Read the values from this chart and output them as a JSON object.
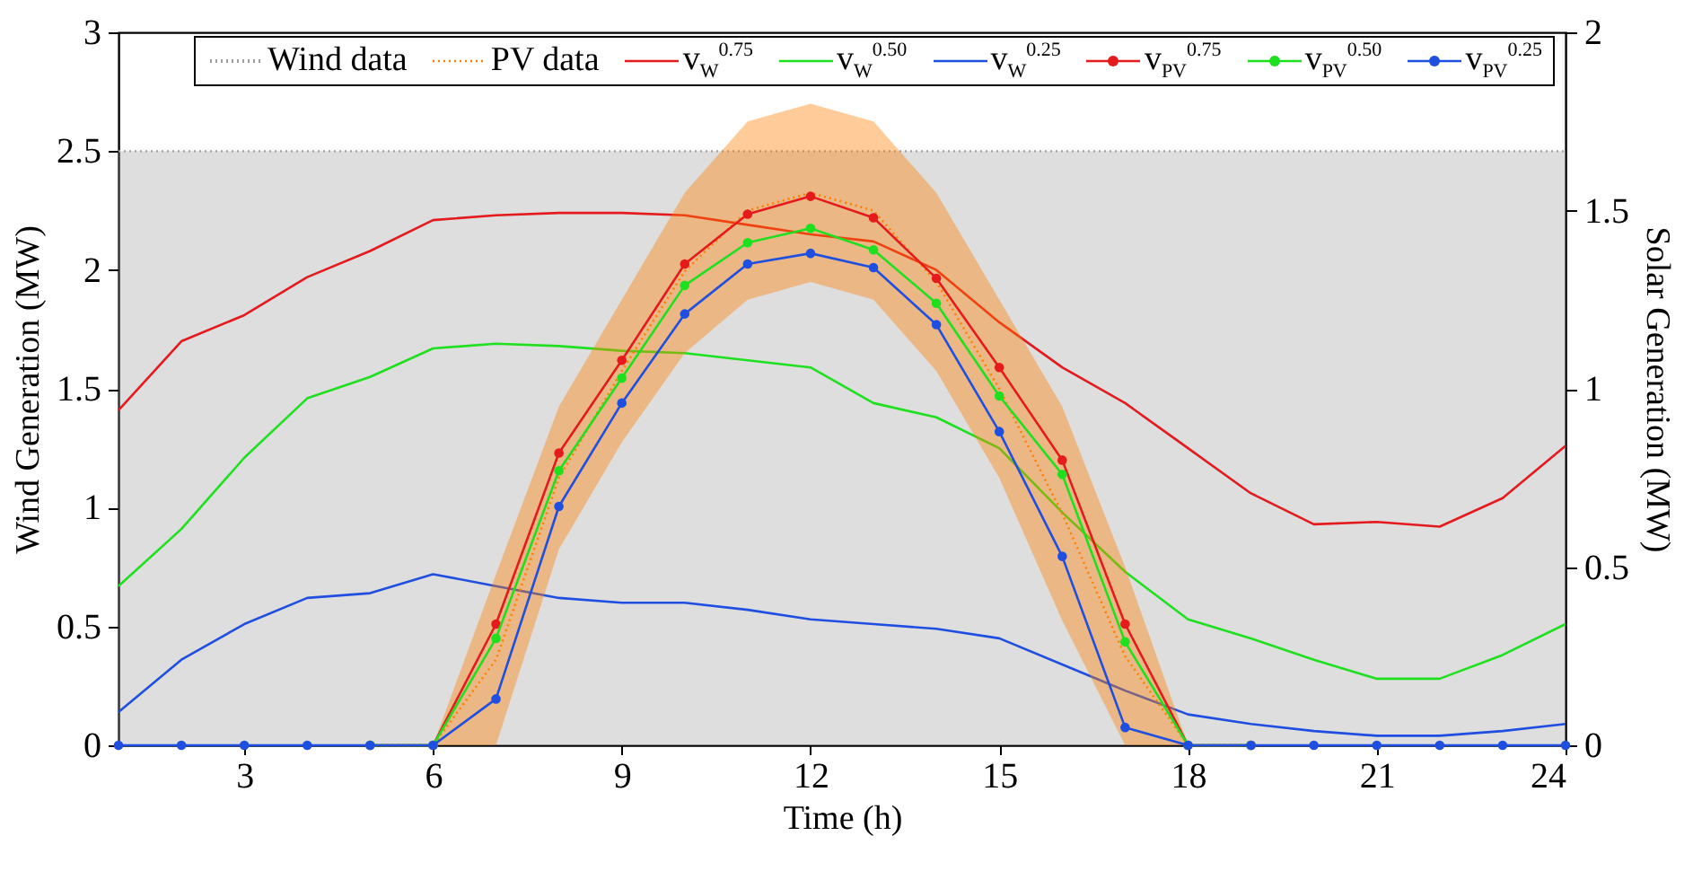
{
  "chart_data": {
    "type": "line",
    "xlabel": "Time (h)",
    "ylabel": "Wind Generation (MW)",
    "y2label": "Solar Generation (MW)",
    "x": [
      1,
      2,
      3,
      4,
      5,
      6,
      7,
      8,
      9,
      10,
      11,
      12,
      13,
      14,
      15,
      16,
      17,
      18,
      19,
      20,
      21,
      22,
      23,
      24
    ],
    "xlim": [
      1,
      24
    ],
    "xticks": [
      3,
      6,
      9,
      12,
      15,
      18,
      21,
      24
    ],
    "ylim": [
      0,
      3
    ],
    "yticks": [
      0,
      0.5,
      1,
      1.5,
      2,
      2.5,
      3
    ],
    "y2lim": [
      0,
      2
    ],
    "y2ticks": [
      0,
      0.5,
      1,
      1.5,
      2
    ],
    "legend": "top",
    "series": [
      {
        "name": "Wind data",
        "type": "area",
        "color": "#a0a0a0",
        "values": [
          2.5,
          2.5,
          2.5,
          2.5,
          2.5,
          2.5,
          2.5,
          2.5,
          2.5,
          2.5,
          2.5,
          2.5,
          2.5,
          2.5,
          2.5,
          2.5,
          2.5,
          2.5,
          2.5,
          2.5,
          2.5,
          2.5,
          2.5,
          2.5
        ]
      },
      {
        "name": "PV data",
        "type": "line",
        "line_style": "dotted",
        "axis": "y2",
        "color": "#ff8000",
        "values": [
          null,
          null,
          null,
          null,
          0,
          0,
          0.24,
          0.75,
          1.05,
          1.33,
          1.5,
          1.55,
          1.5,
          1.3,
          1.0,
          0.65,
          0.25,
          0,
          0,
          null,
          null,
          null,
          null,
          null
        ],
        "upper": [
          0,
          0,
          0,
          0,
          0,
          0,
          0.48,
          0.95,
          1.25,
          1.55,
          1.75,
          1.8,
          1.75,
          1.55,
          1.25,
          0.95,
          0.5,
          0,
          0,
          0,
          0,
          0,
          0,
          0
        ],
        "lower": [
          0,
          0,
          0,
          0,
          0,
          0,
          0,
          0.55,
          0.85,
          1.1,
          1.25,
          1.3,
          1.25,
          1.05,
          0.75,
          0.35,
          0,
          0,
          0,
          0,
          0,
          0,
          0,
          0
        ]
      },
      {
        "name": "v$_{W}$$^{0.75}$",
        "type": "line",
        "color": "#e41a1c",
        "values": [
          1.41,
          1.7,
          1.81,
          1.97,
          2.08,
          2.21,
          2.23,
          2.24,
          2.24,
          2.23,
          2.19,
          2.15,
          2.12,
          2.0,
          1.78,
          1.59,
          1.44,
          1.25,
          1.06,
          0.93,
          0.94,
          0.92,
          1.04,
          1.26
        ]
      },
      {
        "name": "v$_{W}$$^{0.50}$",
        "type": "line",
        "color": "#1ee01e",
        "values": [
          0.67,
          0.91,
          1.21,
          1.46,
          1.55,
          1.67,
          1.69,
          1.68,
          1.66,
          1.65,
          1.62,
          1.59,
          1.44,
          1.38,
          1.25,
          0.98,
          0.73,
          0.53,
          0.45,
          0.36,
          0.28,
          0.28,
          0.38,
          0.51
        ]
      },
      {
        "name": "v$_{W}$$^{0.25}$",
        "type": "line",
        "color": "#1f4fe0",
        "values": [
          0.14,
          0.36,
          0.51,
          0.62,
          0.64,
          0.72,
          0.67,
          0.62,
          0.6,
          0.6,
          0.57,
          0.53,
          0.51,
          0.49,
          0.45,
          0.34,
          0.23,
          0.13,
          0.09,
          0.06,
          0.04,
          0.04,
          0.06,
          0.09
        ]
      },
      {
        "name": "v$_{PV}$$^{0.75}$",
        "type": "line",
        "axis": "y2",
        "marker": "circle",
        "color": "#e41a1c",
        "values": [
          null,
          null,
          null,
          null,
          0,
          0,
          0.34,
          0.82,
          1.08,
          1.35,
          1.49,
          1.54,
          1.48,
          1.31,
          1.06,
          0.8,
          0.34,
          0,
          0,
          null,
          null,
          null,
          null,
          null
        ]
      },
      {
        "name": "v$_{PV}$$^{0.50}$",
        "type": "line",
        "axis": "y2",
        "marker": "circle",
        "color": "#1ee01e",
        "values": [
          null,
          null,
          null,
          null,
          0,
          0,
          0.3,
          0.77,
          1.03,
          1.29,
          1.41,
          1.45,
          1.39,
          1.24,
          0.98,
          0.76,
          0.29,
          0,
          0,
          null,
          null,
          null,
          null,
          null
        ]
      },
      {
        "name": "v$_{PV}$$^{0.25}$",
        "type": "line",
        "axis": "y2",
        "marker": "circle",
        "color": "#1f4fe0",
        "values": [
          0,
          0,
          0,
          0,
          0,
          0,
          0.13,
          0.67,
          0.96,
          1.21,
          1.35,
          1.38,
          1.34,
          1.18,
          0.88,
          0.53,
          0.05,
          0,
          0,
          0,
          0,
          0,
          0,
          0
        ]
      }
    ]
  }
}
